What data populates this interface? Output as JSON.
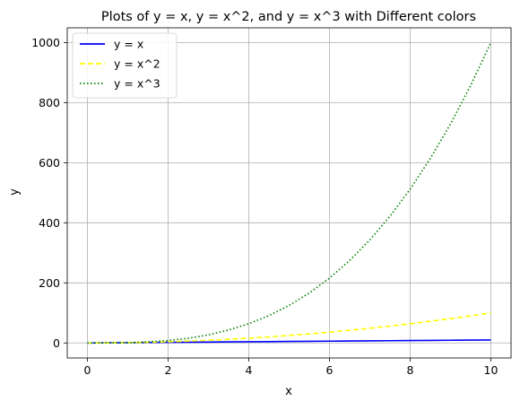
{
  "chart_data": {
    "type": "line",
    "title": "Plots of y = x, y = x^2, and y = x^3 with Different colors",
    "xlabel": "x",
    "ylabel": "y",
    "xlim": [
      -0.5,
      10.5
    ],
    "ylim": [
      -49.95,
      1048.95
    ],
    "x_ticks": [
      0,
      2,
      4,
      6,
      8,
      10
    ],
    "x_tick_labels": [
      "0",
      "2",
      "4",
      "6",
      "8",
      "10"
    ],
    "y_ticks": [
      0,
      200,
      400,
      600,
      800,
      1000
    ],
    "y_tick_labels": [
      "0",
      "200",
      "400",
      "600",
      "800",
      "1000"
    ],
    "grid": true,
    "legend_position": "top-left",
    "x": [
      0,
      0.5,
      1,
      1.5,
      2,
      2.5,
      3,
      3.5,
      4,
      4.5,
      5,
      5.5,
      6,
      6.5,
      7,
      7.5,
      8,
      8.5,
      9,
      9.5,
      10
    ],
    "series": [
      {
        "name": "y = x",
        "color": "#0000ff",
        "style": "solid",
        "values": [
          0,
          0.5,
          1,
          1.5,
          2,
          2.5,
          3,
          3.5,
          4,
          4.5,
          5,
          5.5,
          6,
          6.5,
          7,
          7.5,
          8,
          8.5,
          9,
          9.5,
          10
        ]
      },
      {
        "name": "y = x^2",
        "color": "#ffff00",
        "style": "dashed",
        "values": [
          0,
          0.25,
          1,
          2.25,
          4,
          6.25,
          9,
          12.25,
          16,
          20.25,
          25,
          30.25,
          36,
          42.25,
          49,
          56.25,
          64,
          72.25,
          81,
          90.25,
          100
        ]
      },
      {
        "name": "y = x^3",
        "color": "#008000",
        "style": "dotted",
        "values": [
          0,
          0.125,
          1,
          3.375,
          8,
          15.625,
          27,
          42.875,
          64,
          91.125,
          125,
          166.375,
          216,
          274.625,
          343,
          421.875,
          512,
          614.125,
          729,
          857.375,
          1000
        ]
      }
    ]
  }
}
